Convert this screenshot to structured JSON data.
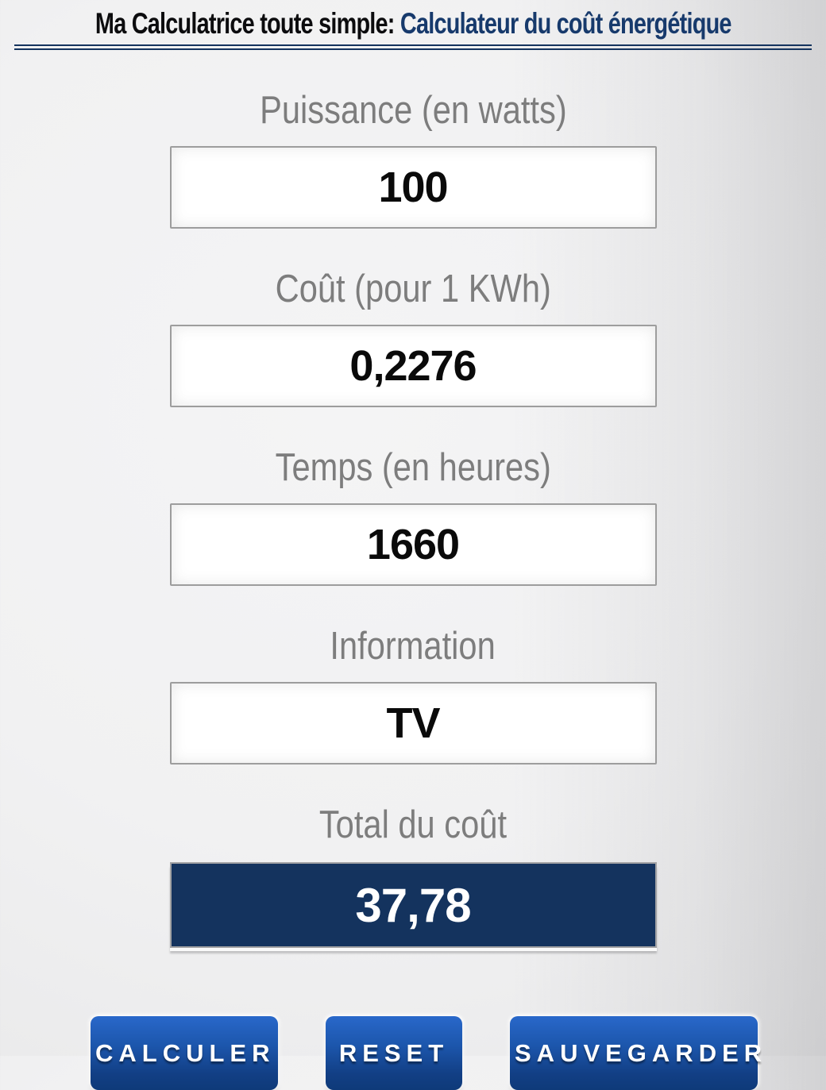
{
  "header": {
    "title_left": "Ma Calculatrice toute simple:",
    "title_right": "Calculateur du coût énergétique"
  },
  "fields": {
    "puissance": {
      "label": "Puissance (en watts)",
      "value": "100"
    },
    "cout": {
      "label": "Coût (pour 1 KWh)",
      "value": "0,2276"
    },
    "temps": {
      "label": "Temps (en heures)",
      "value": "1660"
    },
    "information": {
      "label": "Information",
      "value": "TV"
    },
    "total": {
      "label": "Total du coût",
      "value": "37,78"
    }
  },
  "buttons": {
    "calculate": "CALCULER",
    "reset": "RESET",
    "save": "SAUVEGARDER"
  },
  "colors": {
    "accent_blue": "#173a6c",
    "divider_blue": "#14335e",
    "total_background": "#14335e",
    "button_gradient_top": "#2968ca",
    "button_gradient_bottom": "#0e3a79",
    "label_gray": "#7d7d7d"
  }
}
